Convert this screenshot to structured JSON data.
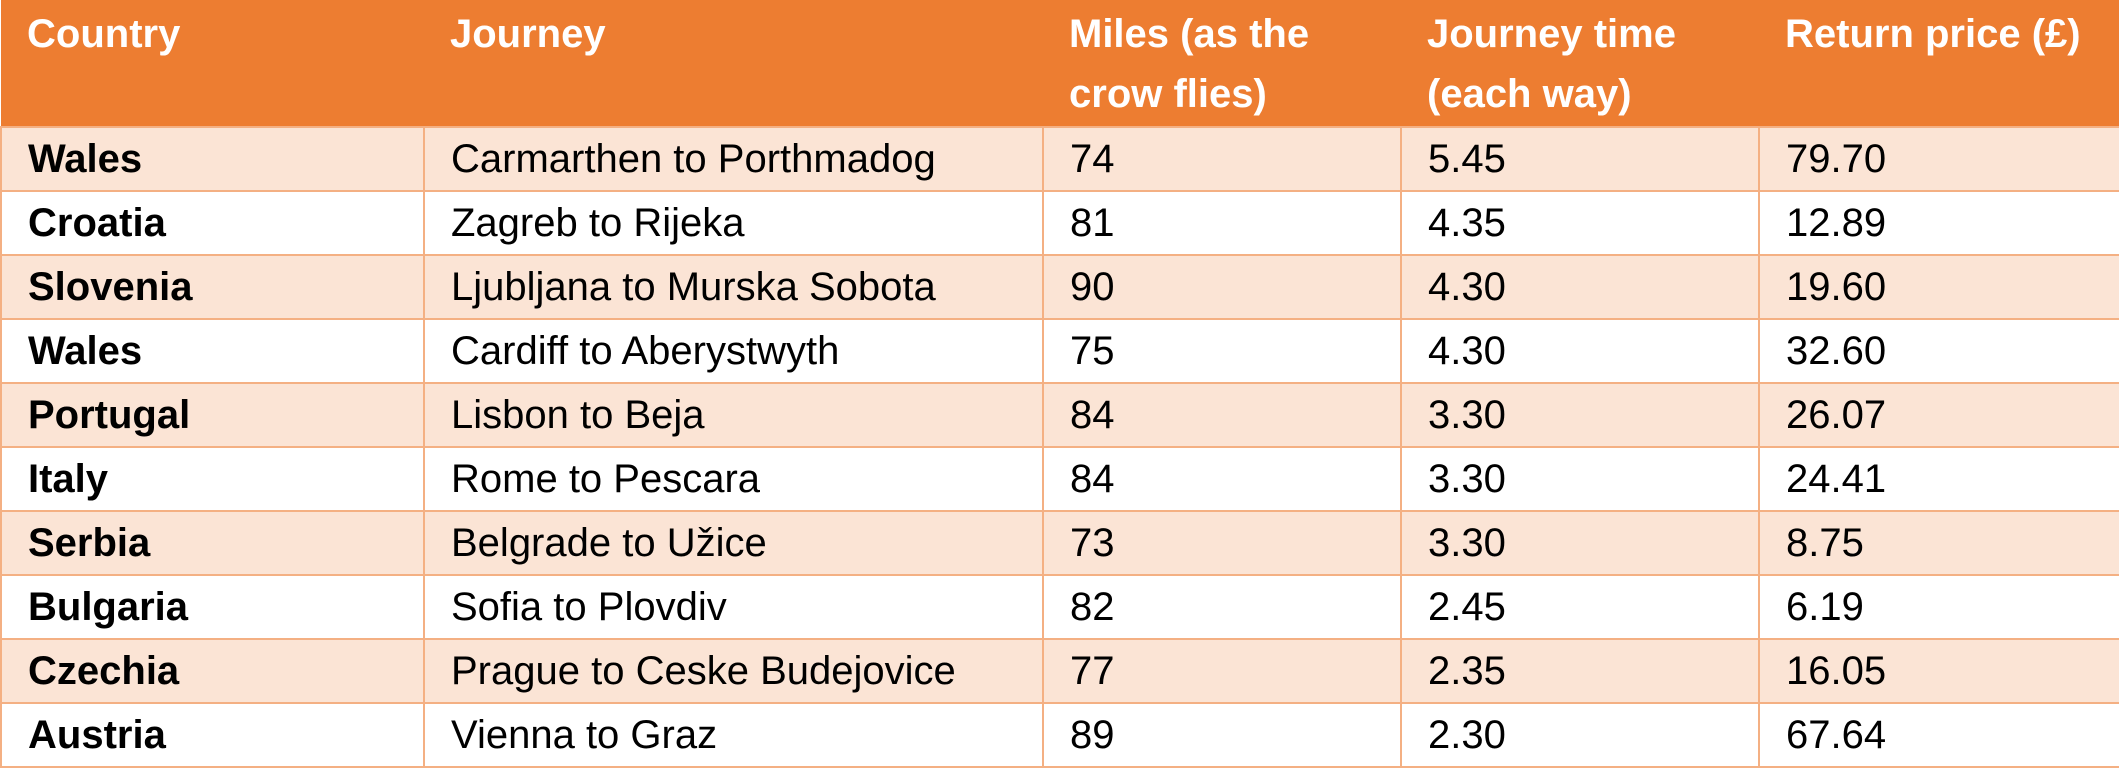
{
  "table": {
    "header": [
      "Country",
      "Journey",
      "Miles (as the crow flies)",
      "Journey time (each way)",
      "Return price (£)"
    ],
    "rows": [
      [
        "Wales",
        "Carmarthen to Porthmadog",
        "74",
        "5.45",
        "79.70"
      ],
      [
        "Croatia",
        "Zagreb to Rijeka",
        "81",
        "4.35",
        "12.89"
      ],
      [
        "Slovenia",
        "Ljubljana to Murska Sobota",
        "90",
        "4.30",
        "19.60"
      ],
      [
        "Wales",
        "Cardiff to Aberystwyth",
        "75",
        "4.30",
        "32.60"
      ],
      [
        "Portugal",
        "Lisbon to Beja",
        "84",
        "3.30",
        "26.07"
      ],
      [
        "Italy",
        "Rome to Pescara",
        "84",
        "3.30",
        "24.41"
      ],
      [
        "Serbia",
        "Belgrade to Užice",
        "73",
        "3.30",
        "8.75"
      ],
      [
        "Bulgaria",
        "Sofia to Plovdiv",
        "82",
        "2.45",
        "6.19"
      ],
      [
        "Czechia",
        "Prague to Ceske Budejovice",
        "77",
        "2.35",
        "16.05"
      ],
      [
        "Austria",
        "Vienna to Graz",
        "89",
        "2.30",
        "67.64"
      ]
    ]
  }
}
